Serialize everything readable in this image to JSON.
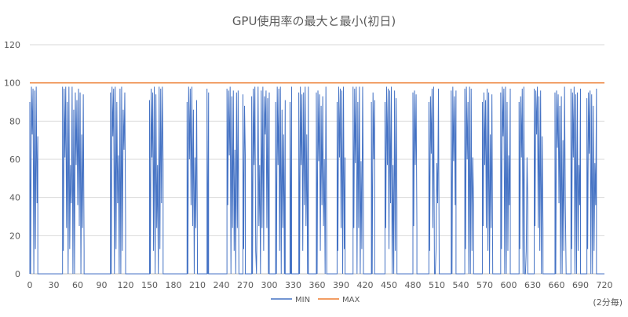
{
  "chart_data": {
    "type": "line",
    "title": "GPU使用率の最大と最小(初日)",
    "unit_note": "(2分毎)",
    "xlabel": "",
    "ylabel": "",
    "xlim": [
      0,
      720
    ],
    "ylim": [
      0,
      120
    ],
    "x_ticks": [
      "0",
      "30",
      "60",
      "90",
      "120",
      "150",
      "180",
      "210",
      "240",
      "270",
      "300",
      "330",
      "360",
      "390",
      "420",
      "450",
      "480",
      "510",
      "540",
      "570",
      "600",
      "630",
      "660",
      "690",
      "720"
    ],
    "y_ticks": [
      "0",
      "20",
      "40",
      "60",
      "80",
      "100",
      "120"
    ],
    "grid": true,
    "legend_position": "bottom",
    "series": [
      {
        "name": "MIN",
        "color": "#4472C4",
        "pattern": "oscillating",
        "active_ranges": [
          [
            0,
            10
          ],
          [
            41,
            68
          ],
          [
            101,
            120
          ],
          [
            150,
            167
          ],
          [
            197,
            210
          ],
          [
            222,
            224
          ],
          [
            247,
            262
          ],
          [
            267,
            270
          ],
          [
            278,
            300
          ],
          [
            308,
            320
          ],
          [
            326,
            328
          ],
          [
            337,
            349
          ],
          [
            359,
            372
          ],
          [
            385,
            395
          ],
          [
            405,
            418
          ],
          [
            428,
            432
          ],
          [
            445,
            460
          ],
          [
            480,
            485
          ],
          [
            500,
            513
          ],
          [
            528,
            534
          ],
          [
            545,
            556
          ],
          [
            567,
            580
          ],
          [
            590,
            602
          ],
          [
            613,
            624
          ],
          [
            632,
            643
          ],
          [
            658,
            672
          ],
          [
            678,
            690
          ],
          [
            698,
            710
          ]
        ],
        "peaks": [
          0,
          97,
          98,
          95,
          97,
          98,
          96,
          94,
          98,
          95,
          93,
          98,
          96,
          97,
          92,
          98,
          95,
          90,
          96,
          98,
          94,
          97,
          88,
          98,
          93,
          86,
          97,
          95,
          98,
          91
        ],
        "mid_peaks": [
          60,
          62,
          58,
          73,
          64,
          57,
          70,
          61,
          65,
          59,
          72,
          63,
          57,
          68,
          61,
          66
        ],
        "drops": [
          0,
          0,
          12,
          24,
          36,
          0,
          25,
          13,
          0,
          37,
          24,
          0,
          12
        ]
      },
      {
        "name": "MAX",
        "color": "#ED7D31",
        "value": 100
      }
    ]
  }
}
